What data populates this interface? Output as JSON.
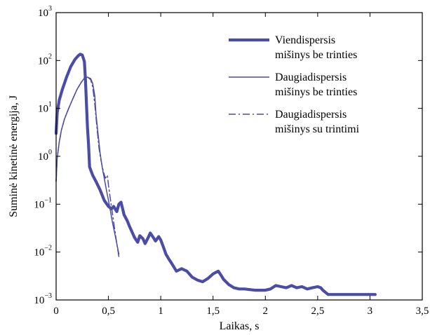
{
  "chart_data": {
    "type": "line",
    "xlabel": "Laikas, s",
    "ylabel": "Suminė kinetinė energija, J",
    "xlim": [
      0,
      3.5
    ],
    "ylim": [
      0.001,
      1000
    ],
    "yscale": "log",
    "grid": false,
    "legend_position": "top-right",
    "x_ticks": [
      "0",
      "0,5",
      "1",
      "1,5",
      "2",
      "2,5",
      "3",
      "3,5"
    ],
    "x_tick_values": [
      0,
      0.5,
      1,
      1.5,
      2,
      2.5,
      3,
      3.5
    ],
    "y_ticks": [
      {
        "base": "10",
        "exp": "−3"
      },
      {
        "base": "10",
        "exp": "−2"
      },
      {
        "base": "10",
        "exp": "−1"
      },
      {
        "base": "10",
        "exp": "0"
      },
      {
        "base": "10",
        "exp": "1"
      },
      {
        "base": "10",
        "exp": "2"
      },
      {
        "base": "10",
        "exp": "3"
      }
    ],
    "y_tick_values": [
      0.001,
      0.01,
      0.1,
      1,
      10,
      100,
      1000
    ],
    "color": "#4a4ca6",
    "series": [
      {
        "name": "Viendispersis mišinys be trinties",
        "style": "thick",
        "x": [
          0.0,
          0.01,
          0.03,
          0.06,
          0.1,
          0.14,
          0.18,
          0.21,
          0.23,
          0.25,
          0.27,
          0.28,
          0.29,
          0.3,
          0.31,
          0.32,
          0.35,
          0.38,
          0.42,
          0.46,
          0.5,
          0.53,
          0.55,
          0.58,
          0.6,
          0.62,
          0.65,
          0.68,
          0.7,
          0.73,
          0.75,
          0.78,
          0.8,
          0.83,
          0.85,
          0.88,
          0.9,
          0.93,
          0.95,
          0.98,
          1.0,
          1.03,
          1.05,
          1.08,
          1.1,
          1.15,
          1.2,
          1.25,
          1.3,
          1.35,
          1.4,
          1.45,
          1.5,
          1.53,
          1.55,
          1.58,
          1.6,
          1.65,
          1.7,
          1.75,
          1.8,
          1.9,
          2.0,
          2.05,
          2.1,
          2.15,
          2.2,
          2.25,
          2.3,
          2.35,
          2.4,
          2.45,
          2.5,
          2.53,
          2.55,
          2.6,
          2.7,
          2.8,
          2.9,
          3.0,
          3.05
        ],
        "y": [
          3.0,
          8.0,
          15.0,
          25.0,
          45.0,
          75.0,
          105.0,
          125.0,
          135.0,
          130.0,
          95.0,
          40.0,
          12.0,
          4.0,
          1.8,
          0.6,
          0.4,
          0.3,
          0.2,
          0.12,
          0.09,
          0.08,
          0.09,
          0.07,
          0.1,
          0.11,
          0.06,
          0.045,
          0.035,
          0.025,
          0.02,
          0.016,
          0.022,
          0.019,
          0.015,
          0.02,
          0.025,
          0.02,
          0.017,
          0.021,
          0.018,
          0.012,
          0.009,
          0.007,
          0.006,
          0.004,
          0.0045,
          0.004,
          0.003,
          0.0026,
          0.0024,
          0.0028,
          0.0035,
          0.0038,
          0.004,
          0.0032,
          0.0027,
          0.0021,
          0.0018,
          0.0017,
          0.0017,
          0.0016,
          0.0016,
          0.0017,
          0.002,
          0.0019,
          0.0018,
          0.002,
          0.0018,
          0.0019,
          0.0017,
          0.0018,
          0.0019,
          0.0018,
          0.0016,
          0.0013,
          0.0013,
          0.0013,
          0.0013,
          0.0013,
          0.0013
        ]
      },
      {
        "name": "Daugiadispersis mišinys be trinties",
        "style": "thin",
        "x": [
          0.0,
          0.01,
          0.03,
          0.05,
          0.08,
          0.12,
          0.16,
          0.2,
          0.24,
          0.27,
          0.3,
          0.33,
          0.35,
          0.37,
          0.38,
          0.4,
          0.42,
          0.44,
          0.46,
          0.48,
          0.5,
          0.52,
          0.54,
          0.56,
          0.58,
          0.6
        ],
        "y": [
          0.3,
          0.9,
          2.0,
          3.5,
          6.0,
          10.0,
          16.0,
          25.0,
          35.0,
          43.0,
          45.0,
          42.0,
          33.0,
          18.0,
          8.0,
          3.0,
          1.2,
          0.6,
          0.35,
          0.2,
          0.12,
          0.07,
          0.04,
          0.025,
          0.015,
          0.009
        ]
      },
      {
        "name": "Daugiadispersis mišinys su trintimi",
        "style": "dashdot",
        "x": [
          0.0,
          0.01,
          0.03,
          0.05,
          0.08,
          0.12,
          0.16,
          0.2,
          0.24,
          0.27,
          0.3,
          0.33,
          0.35,
          0.37,
          0.39,
          0.41,
          0.43,
          0.45,
          0.47,
          0.49,
          0.5,
          0.52,
          0.54,
          0.56,
          0.58,
          0.6
        ],
        "y": [
          0.3,
          0.9,
          2.0,
          3.5,
          6.0,
          10.0,
          16.0,
          25.0,
          35.0,
          43.0,
          45.0,
          40.0,
          28.0,
          12.0,
          4.0,
          1.5,
          0.8,
          0.5,
          0.35,
          0.4,
          0.25,
          0.12,
          0.06,
          0.03,
          0.015,
          0.008
        ]
      }
    ]
  }
}
